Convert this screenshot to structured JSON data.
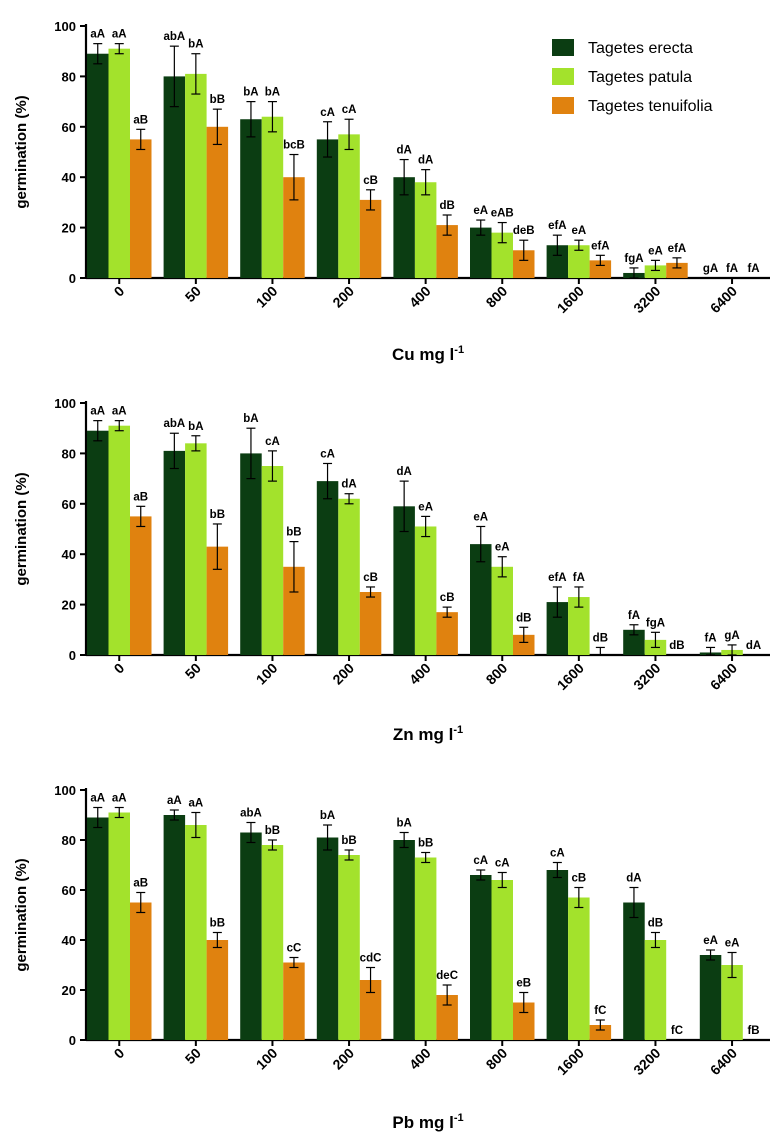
{
  "colors": {
    "Tagetes erecta": "#0b3d12",
    "Tagetes patula": "#a3e22c",
    "Tagetes tenuifolia": "#e0820f"
  },
  "chart_data": [
    {
      "type": "bar",
      "metal": "Cu",
      "xlabel": "Cu mg l-1",
      "ylabel": "germination (%)",
      "ylim": [
        0,
        100
      ],
      "yticks": [
        0,
        20,
        40,
        60,
        80,
        100
      ],
      "categories": [
        "0",
        "50",
        "100",
        "200",
        "400",
        "800",
        "1600",
        "3200",
        "6400"
      ],
      "legend": {
        "placement": "top-right",
        "entries": [
          "Tagetes erecta",
          "Tagetes patula",
          "Tagetes tenuifolia"
        ]
      },
      "series": [
        {
          "name": "Tagetes erecta",
          "values": [
            89,
            80,
            63,
            55,
            40,
            20,
            13,
            2,
            0
          ],
          "errors": [
            4,
            12,
            7,
            7,
            7,
            3,
            4,
            2,
            0
          ],
          "letters": [
            "aA",
            "abA",
            "bA",
            "cA",
            "dA",
            "eA",
            "efA",
            "fgA",
            "gA"
          ]
        },
        {
          "name": "Tagetes patula",
          "values": [
            91,
            81,
            64,
            57,
            38,
            18,
            13,
            5,
            0
          ],
          "errors": [
            2,
            8,
            6,
            6,
            5,
            4,
            2,
            2,
            0
          ],
          "letters": [
            "aA",
            "bA",
            "bA",
            "cA",
            "dA",
            "eAB",
            "eA",
            "eA",
            "fA"
          ]
        },
        {
          "name": "Tagetes tenuifolia",
          "values": [
            55,
            60,
            40,
            31,
            21,
            11,
            7,
            6,
            0
          ],
          "errors": [
            4,
            7,
            9,
            4,
            4,
            4,
            2,
            2,
            0
          ],
          "letters": [
            "aB",
            "bB",
            "bcB",
            "cB",
            "dB",
            "deB",
            "efA",
            "efA",
            "fA"
          ]
        }
      ]
    },
    {
      "type": "bar",
      "metal": "Zn",
      "xlabel": "Zn mg l-1",
      "ylabel": "germination (%)",
      "ylim": [
        0,
        100
      ],
      "yticks": [
        0,
        20,
        40,
        60,
        80,
        100
      ],
      "categories": [
        "0",
        "50",
        "100",
        "200",
        "400",
        "800",
        "1600",
        "3200",
        "6400"
      ],
      "series": [
        {
          "name": "Tagetes erecta",
          "values": [
            89,
            81,
            80,
            69,
            59,
            44,
            21,
            10,
            1
          ],
          "errors": [
            4,
            7,
            10,
            7,
            10,
            7,
            6,
            2,
            2
          ],
          "letters": [
            "aA",
            "abA",
            "bA",
            "cA",
            "dA",
            "eA",
            "efA",
            "fA",
            "fA"
          ]
        },
        {
          "name": "Tagetes patula",
          "values": [
            91,
            84,
            75,
            62,
            51,
            35,
            23,
            6,
            2
          ],
          "errors": [
            2,
            3,
            6,
            2,
            4,
            4,
            4,
            3,
            2
          ],
          "letters": [
            "aA",
            "bA",
            "cA",
            "dA",
            "eA",
            "eA",
            "fA",
            "fgA",
            "gA"
          ]
        },
        {
          "name": "Tagetes tenuifolia",
          "values": [
            55,
            43,
            35,
            25,
            17,
            8,
            0,
            0,
            0
          ],
          "errors": [
            4,
            9,
            10,
            2,
            2,
            3,
            3,
            0,
            0
          ],
          "letters": [
            "aB",
            "bB",
            "bB",
            "cB",
            "cB",
            "dB",
            "dB",
            "dB",
            "dA"
          ]
        }
      ]
    },
    {
      "type": "bar",
      "metal": "Pb",
      "xlabel": "Pb mg l-1",
      "ylabel": "germination (%)",
      "ylim": [
        0,
        100
      ],
      "yticks": [
        0,
        20,
        40,
        60,
        80,
        100
      ],
      "categories": [
        "0",
        "50",
        "100",
        "200",
        "400",
        "800",
        "1600",
        "3200",
        "6400"
      ],
      "series": [
        {
          "name": "Tagetes erecta",
          "values": [
            89,
            90,
            83,
            81,
            80,
            66,
            68,
            55,
            34
          ],
          "errors": [
            4,
            2,
            4,
            5,
            3,
            2,
            3,
            6,
            2
          ],
          "letters": [
            "aA",
            "aA",
            "abA",
            "bA",
            "bA",
            "cA",
            "cA",
            "dA",
            "eA"
          ]
        },
        {
          "name": "Tagetes patula",
          "values": [
            91,
            86,
            78,
            74,
            73,
            64,
            57,
            40,
            30
          ],
          "errors": [
            2,
            5,
            2,
            2,
            2,
            3,
            4,
            3,
            5
          ],
          "letters": [
            "aA",
            "aA",
            "bB",
            "bB",
            "bB",
            "cA",
            "cB",
            "dB",
            "eA"
          ]
        },
        {
          "name": "Tagetes tenuifolia",
          "values": [
            55,
            40,
            31,
            24,
            18,
            15,
            6,
            0,
            0
          ],
          "errors": [
            4,
            3,
            2,
            5,
            4,
            4,
            2,
            0,
            0
          ],
          "letters": [
            "aB",
            "bB",
            "cC",
            "cdC",
            "deC",
            "eB",
            "fC",
            "fC",
            "fB"
          ]
        }
      ]
    }
  ]
}
